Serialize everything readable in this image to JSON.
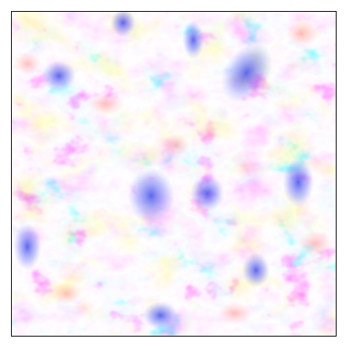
{
  "image": {
    "kind": "diverging-noise-field",
    "colormap": {
      "low": "#1f2bff",
      "mid": "#ffffff",
      "high": "#ff6a6a"
    },
    "frame_color": "#000000",
    "background": "#ffffff"
  }
}
